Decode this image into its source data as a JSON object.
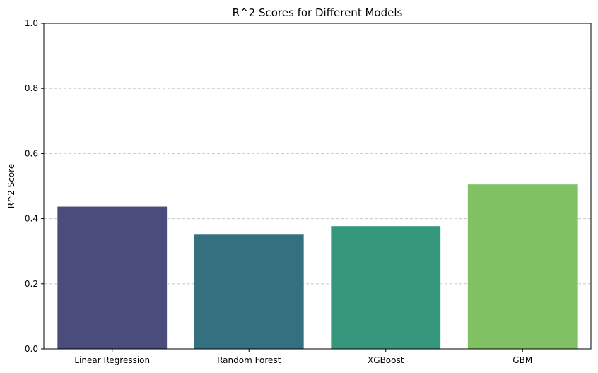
{
  "chart_data": {
    "type": "bar",
    "title": "R^2 Scores for Different Models",
    "xlabel": "",
    "ylabel": "R^2 Score",
    "categories": [
      "Linear Regression",
      "Random Forest",
      "XGBoost",
      "GBM"
    ],
    "values": [
      0.437,
      0.353,
      0.377,
      0.505
    ],
    "colors": [
      "#4a4c7c",
      "#357081",
      "#35977c",
      "#80c163"
    ],
    "ylim": [
      0,
      1.0
    ],
    "yticks": [
      0.0,
      0.2,
      0.4,
      0.6,
      0.8,
      1.0
    ],
    "ytick_labels": [
      "0.0",
      "0.2",
      "0.4",
      "0.6",
      "0.8",
      "1.0"
    ],
    "grid": "y-dashed",
    "legend": "none"
  }
}
